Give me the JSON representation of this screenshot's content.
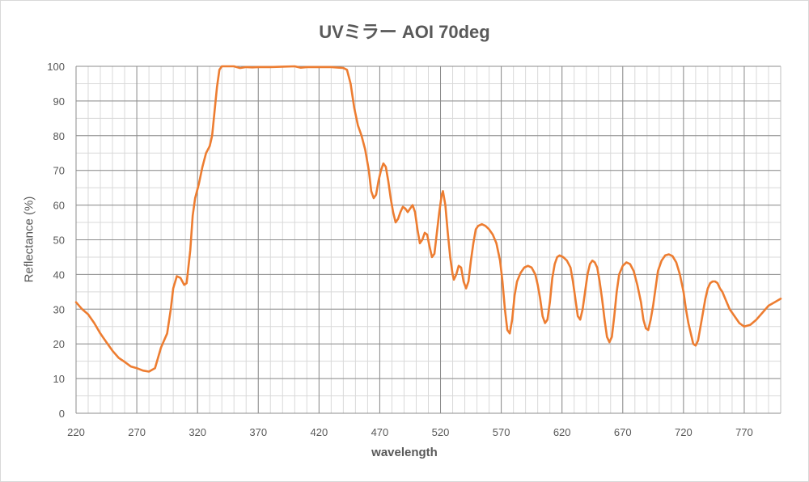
{
  "chart_data": {
    "type": "line",
    "title": "UVミラー AOI 70deg",
    "xlabel": "wavelength",
    "ylabel": "Reflectance (%)",
    "xlim": [
      220,
      800
    ],
    "ylim": [
      0,
      100
    ],
    "x_ticks": [
      220,
      270,
      320,
      370,
      420,
      470,
      520,
      570,
      620,
      670,
      720,
      770
    ],
    "y_ticks": [
      0,
      10,
      20,
      30,
      40,
      50,
      60,
      70,
      80,
      90,
      100
    ],
    "grid": "major and minor",
    "legend": "none",
    "series": [
      {
        "color": "#ED7D31",
        "points": [
          [
            220,
            32
          ],
          [
            225,
            30
          ],
          [
            230,
            28.5
          ],
          [
            235,
            26
          ],
          [
            240,
            23
          ],
          [
            245,
            20.5
          ],
          [
            250,
            18
          ],
          [
            255,
            16
          ],
          [
            260,
            14.8
          ],
          [
            265,
            13.5
          ],
          [
            270,
            13
          ],
          [
            275,
            12.3
          ],
          [
            280,
            12
          ],
          [
            285,
            13
          ],
          [
            290,
            19
          ],
          [
            295,
            23
          ],
          [
            298,
            30
          ],
          [
            300,
            36
          ],
          [
            303,
            39.5
          ],
          [
            306,
            39
          ],
          [
            309,
            37
          ],
          [
            311,
            37.5
          ],
          [
            314,
            47
          ],
          [
            316,
            57
          ],
          [
            318,
            62
          ],
          [
            321,
            66
          ],
          [
            324,
            71
          ],
          [
            327,
            75
          ],
          [
            330,
            77
          ],
          [
            332,
            80
          ],
          [
            334,
            87
          ],
          [
            336,
            94
          ],
          [
            338,
            99
          ],
          [
            340,
            100
          ],
          [
            345,
            100
          ],
          [
            350,
            100
          ],
          [
            355,
            99.5
          ],
          [
            360,
            99.8
          ],
          [
            365,
            99.7
          ],
          [
            370,
            99.8
          ],
          [
            380,
            99.8
          ],
          [
            390,
            99.9
          ],
          [
            400,
            100
          ],
          [
            405,
            99.6
          ],
          [
            410,
            99.8
          ],
          [
            420,
            99.8
          ],
          [
            430,
            99.8
          ],
          [
            440,
            99.5
          ],
          [
            443,
            99
          ],
          [
            446,
            95
          ],
          [
            449,
            88
          ],
          [
            452,
            83
          ],
          [
            455,
            80
          ],
          [
            458,
            76
          ],
          [
            461,
            70
          ],
          [
            463,
            64
          ],
          [
            465,
            62
          ],
          [
            467,
            63
          ],
          [
            469,
            67
          ],
          [
            471,
            70
          ],
          [
            473,
            72
          ],
          [
            475,
            71
          ],
          [
            477,
            67
          ],
          [
            479,
            62
          ],
          [
            481,
            58
          ],
          [
            483,
            55
          ],
          [
            485,
            56
          ],
          [
            487,
            58
          ],
          [
            489,
            59.5
          ],
          [
            491,
            59
          ],
          [
            493,
            58
          ],
          [
            495,
            59
          ],
          [
            497,
            60
          ],
          [
            499,
            58
          ],
          [
            501,
            53
          ],
          [
            503,
            49
          ],
          [
            505,
            50
          ],
          [
            507,
            52
          ],
          [
            509,
            51.5
          ],
          [
            511,
            48
          ],
          [
            513,
            45
          ],
          [
            515,
            46
          ],
          [
            517,
            52
          ],
          [
            519,
            58
          ],
          [
            521,
            63
          ],
          [
            522,
            64
          ],
          [
            524,
            60
          ],
          [
            526,
            52
          ],
          [
            528,
            45
          ],
          [
            530,
            40
          ],
          [
            531,
            38.5
          ],
          [
            533,
            40
          ],
          [
            535,
            42.5
          ],
          [
            537,
            42
          ],
          [
            539,
            38
          ],
          [
            541,
            36
          ],
          [
            543,
            38
          ],
          [
            545,
            44
          ],
          [
            547,
            49
          ],
          [
            549,
            53
          ],
          [
            551,
            54
          ],
          [
            554,
            54.5
          ],
          [
            557,
            54
          ],
          [
            560,
            53
          ],
          [
            563,
            51.5
          ],
          [
            566,
            49
          ],
          [
            569,
            44
          ],
          [
            571,
            38
          ],
          [
            573,
            30
          ],
          [
            575,
            24
          ],
          [
            577,
            23
          ],
          [
            579,
            27
          ],
          [
            581,
            34
          ],
          [
            583,
            38
          ],
          [
            586,
            40.5
          ],
          [
            589,
            42
          ],
          [
            592,
            42.5
          ],
          [
            595,
            42
          ],
          [
            598,
            40
          ],
          [
            600,
            37
          ],
          [
            602,
            33
          ],
          [
            604,
            28
          ],
          [
            606,
            26
          ],
          [
            608,
            27
          ],
          [
            610,
            32
          ],
          [
            612,
            39
          ],
          [
            614,
            43
          ],
          [
            616,
            45
          ],
          [
            618,
            45.5
          ],
          [
            621,
            45
          ],
          [
            624,
            44
          ],
          [
            627,
            42
          ],
          [
            629,
            38
          ],
          [
            631,
            33
          ],
          [
            633,
            28
          ],
          [
            635,
            27
          ],
          [
            637,
            30
          ],
          [
            639,
            35
          ],
          [
            641,
            40
          ],
          [
            643,
            43
          ],
          [
            645,
            44
          ],
          [
            647,
            43.5
          ],
          [
            649,
            42
          ],
          [
            651,
            38
          ],
          [
            653,
            33
          ],
          [
            655,
            27
          ],
          [
            657,
            22
          ],
          [
            659,
            20.5
          ],
          [
            661,
            22
          ],
          [
            663,
            28
          ],
          [
            665,
            35
          ],
          [
            667,
            40
          ],
          [
            670,
            42.5
          ],
          [
            673,
            43.5
          ],
          [
            676,
            43
          ],
          [
            679,
            41
          ],
          [
            682,
            37
          ],
          [
            685,
            32
          ],
          [
            687,
            27
          ],
          [
            689,
            24.5
          ],
          [
            691,
            24
          ],
          [
            693,
            27
          ],
          [
            695,
            31
          ],
          [
            697,
            36
          ],
          [
            699,
            41
          ],
          [
            702,
            44
          ],
          [
            705,
            45.5
          ],
          [
            708,
            45.8
          ],
          [
            711,
            45.3
          ],
          [
            714,
            43.5
          ],
          [
            717,
            40
          ],
          [
            720,
            35
          ],
          [
            722,
            30
          ],
          [
            724,
            26
          ],
          [
            726,
            23
          ],
          [
            728,
            20
          ],
          [
            730,
            19.5
          ],
          [
            732,
            21
          ],
          [
            734,
            25
          ],
          [
            736,
            29
          ],
          [
            738,
            33
          ],
          [
            740,
            36
          ],
          [
            742,
            37.5
          ],
          [
            744,
            38
          ],
          [
            746,
            38
          ],
          [
            748,
            37.5
          ],
          [
            750,
            36
          ],
          [
            752,
            35
          ],
          [
            755,
            32.5
          ],
          [
            758,
            30
          ],
          [
            762,
            28
          ],
          [
            766,
            26
          ],
          [
            770,
            25
          ],
          [
            775,
            25.5
          ],
          [
            780,
            27
          ],
          [
            785,
            29
          ],
          [
            790,
            31
          ],
          [
            795,
            32
          ],
          [
            800,
            33
          ]
        ]
      }
    ]
  }
}
